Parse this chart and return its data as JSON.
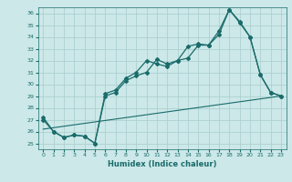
{
  "xlabel": "Humidex (Indice chaleur)",
  "ylabel": "",
  "xlim": [
    -0.5,
    23.5
  ],
  "ylim": [
    24.5,
    36.5
  ],
  "yticks": [
    25,
    26,
    27,
    28,
    29,
    30,
    31,
    32,
    33,
    34,
    35,
    36
  ],
  "xticks": [
    0,
    1,
    2,
    3,
    4,
    5,
    6,
    7,
    8,
    9,
    10,
    11,
    12,
    13,
    14,
    15,
    16,
    17,
    18,
    19,
    20,
    21,
    22,
    23
  ],
  "bg_color": "#cce8e8",
  "line_color": "#1a6b6b",
  "grid_color": "#a8cccc",
  "line1_x": [
    0,
    1,
    2,
    3,
    4,
    5,
    6,
    7,
    8,
    9,
    10,
    11,
    12,
    13,
    14,
    15,
    16,
    17,
    18,
    19,
    20,
    21,
    22,
    23
  ],
  "line1_y": [
    27.2,
    26.0,
    25.5,
    25.7,
    25.6,
    25.0,
    29.0,
    29.3,
    30.3,
    30.7,
    31.0,
    32.1,
    31.7,
    32.0,
    32.2,
    33.3,
    33.3,
    34.2,
    36.3,
    35.3,
    34.0,
    30.8,
    29.3,
    29.0
  ],
  "line2_x": [
    0,
    1,
    2,
    3,
    4,
    5,
    6,
    7,
    8,
    9,
    10,
    11,
    12,
    13,
    14,
    15,
    16,
    17,
    18,
    19,
    20,
    21,
    22,
    23
  ],
  "line2_y": [
    27.0,
    26.0,
    25.5,
    25.7,
    25.6,
    25.0,
    29.2,
    29.5,
    30.5,
    31.0,
    32.0,
    31.7,
    31.5,
    32.0,
    33.2,
    33.4,
    33.3,
    34.5,
    36.3,
    35.2,
    34.0,
    30.8,
    29.3,
    29.0
  ],
  "line3_x": [
    0,
    23
  ],
  "line3_y": [
    26.2,
    29.0
  ]
}
